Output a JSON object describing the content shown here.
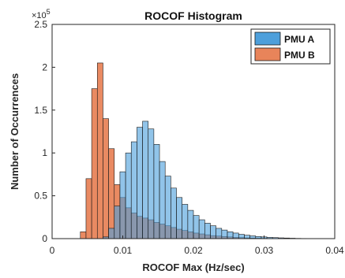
{
  "chart_data": {
    "type": "bar",
    "title": "ROCOF Histogram",
    "xlabel": "ROCOF Max (Hz/sec)",
    "ylabel": "Number of Occurrences",
    "y_scale_label": "×10",
    "y_scale_exponent": "5",
    "xlim": [
      0,
      0.04
    ],
    "ylim": [
      0,
      250000
    ],
    "x_ticks": [
      "0",
      "0.01",
      "0.02",
      "0.03",
      "0.04"
    ],
    "y_ticks": [
      "0",
      "0.5",
      "1",
      "1.5",
      "2",
      "2.5"
    ],
    "x_tick_values": [
      0,
      0.01,
      0.02,
      0.03,
      0.04
    ],
    "y_tick_values": [
      0,
      50000,
      100000,
      150000,
      200000,
      250000
    ],
    "bin_width": 0.0008,
    "legend_position": "top-right",
    "series": [
      {
        "name": "PMU A",
        "color": "#4d9fdb",
        "bin_starts": [
          0.0072,
          0.008,
          0.0088,
          0.0096,
          0.0104,
          0.0112,
          0.012,
          0.0128,
          0.0136,
          0.0144,
          0.0152,
          0.016,
          0.0168,
          0.0176,
          0.0184,
          0.0192,
          0.02,
          0.0208,
          0.0216,
          0.0224,
          0.0232,
          0.024,
          0.0248,
          0.0256,
          0.0264,
          0.0272,
          0.028,
          0.0288,
          0.0296,
          0.0304,
          0.0312,
          0.032,
          0.0328,
          0.0336,
          0.0344,
          0.0352
        ],
        "values": [
          2000,
          12000,
          38000,
          78000,
          100000,
          113000,
          130000,
          137000,
          128000,
          110000,
          90000,
          73000,
          59000,
          48000,
          40000,
          33000,
          27000,
          22000,
          18000,
          15000,
          12000,
          10000,
          8000,
          6500,
          5000,
          4000,
          3200,
          2500,
          2000,
          1500,
          1200,
          900,
          700,
          500,
          300,
          200
        ]
      },
      {
        "name": "PMU B",
        "color": "#e8845a",
        "bin_starts": [
          0.004,
          0.0048,
          0.0056,
          0.0064,
          0.0072,
          0.008,
          0.0088,
          0.0096,
          0.0104,
          0.0112,
          0.012,
          0.0128,
          0.0136,
          0.0144,
          0.0152,
          0.016,
          0.0168,
          0.0176,
          0.0184,
          0.0192,
          0.02,
          0.0208,
          0.0216,
          0.0224,
          0.0232,
          0.024,
          0.0248,
          0.0256,
          0.0264,
          0.0272,
          0.028,
          0.0288,
          0.0296
        ],
        "values": [
          8000,
          70000,
          175000,
          205000,
          140000,
          105000,
          63000,
          48000,
          36000,
          30000,
          26000,
          24000,
          22000,
          19000,
          17000,
          15000,
          13000,
          11000,
          9500,
          8000,
          6500,
          5500,
          4500,
          3500,
          3000,
          2500,
          2000,
          1500,
          1200,
          900,
          700,
          500,
          300
        ]
      }
    ]
  }
}
